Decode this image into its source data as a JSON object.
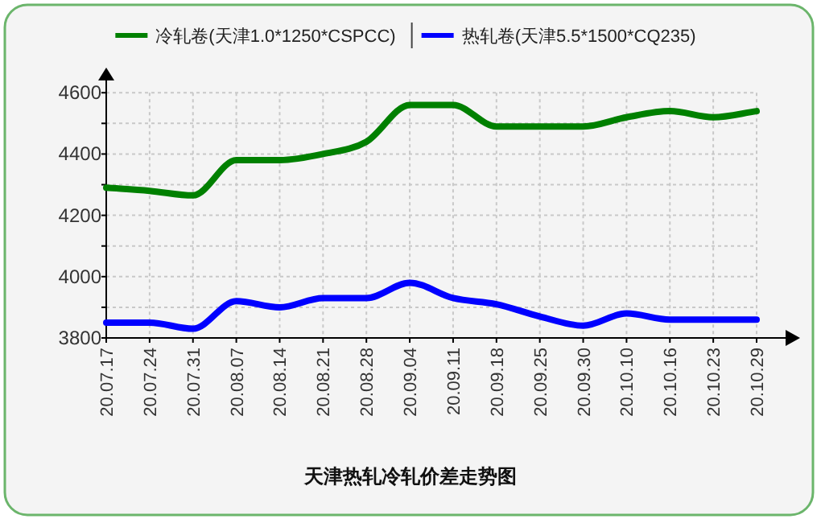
{
  "chart_data": {
    "type": "line",
    "title": "天津热轧冷轧价差走势图",
    "categories": [
      "20.07.17",
      "20.07.24",
      "20.07.31",
      "20.08.07",
      "20.08.14",
      "20.08.21",
      "20.08.28",
      "20.09.04",
      "20.09.11",
      "20.09.18",
      "20.09.25",
      "20.09.30",
      "20.10.10",
      "20.10.16",
      "20.10.23",
      "20.10.29"
    ],
    "series": [
      {
        "name": "冷轧卷(天津1.0*1250*CSPCC)",
        "color": "#008000",
        "values": [
          4290,
          4280,
          4265,
          4380,
          4380,
          4400,
          4440,
          4560,
          4560,
          4490,
          4490,
          4490,
          4520,
          4540,
          4520,
          4540
        ]
      },
      {
        "name": "热轧卷(天津5.5*1500*CQ235)",
        "color": "#0000ff",
        "values": [
          3850,
          3850,
          3830,
          3920,
          3900,
          3930,
          3930,
          3980,
          3930,
          3910,
          3870,
          3840,
          3880,
          3860,
          3860,
          3860
        ]
      }
    ],
    "ylim": [
      3800,
      4640
    ],
    "yticks": [
      3800,
      {
        "value": 3900,
        "label": null
      },
      4000,
      {
        "value": 4100,
        "label": null
      },
      4200,
      {
        "value": 4300,
        "label": null
      },
      4400,
      {
        "value": 4500,
        "label": null
      },
      4600
    ],
    "grid": true,
    "legend": "top",
    "marker": "none",
    "line_style": "solid"
  }
}
